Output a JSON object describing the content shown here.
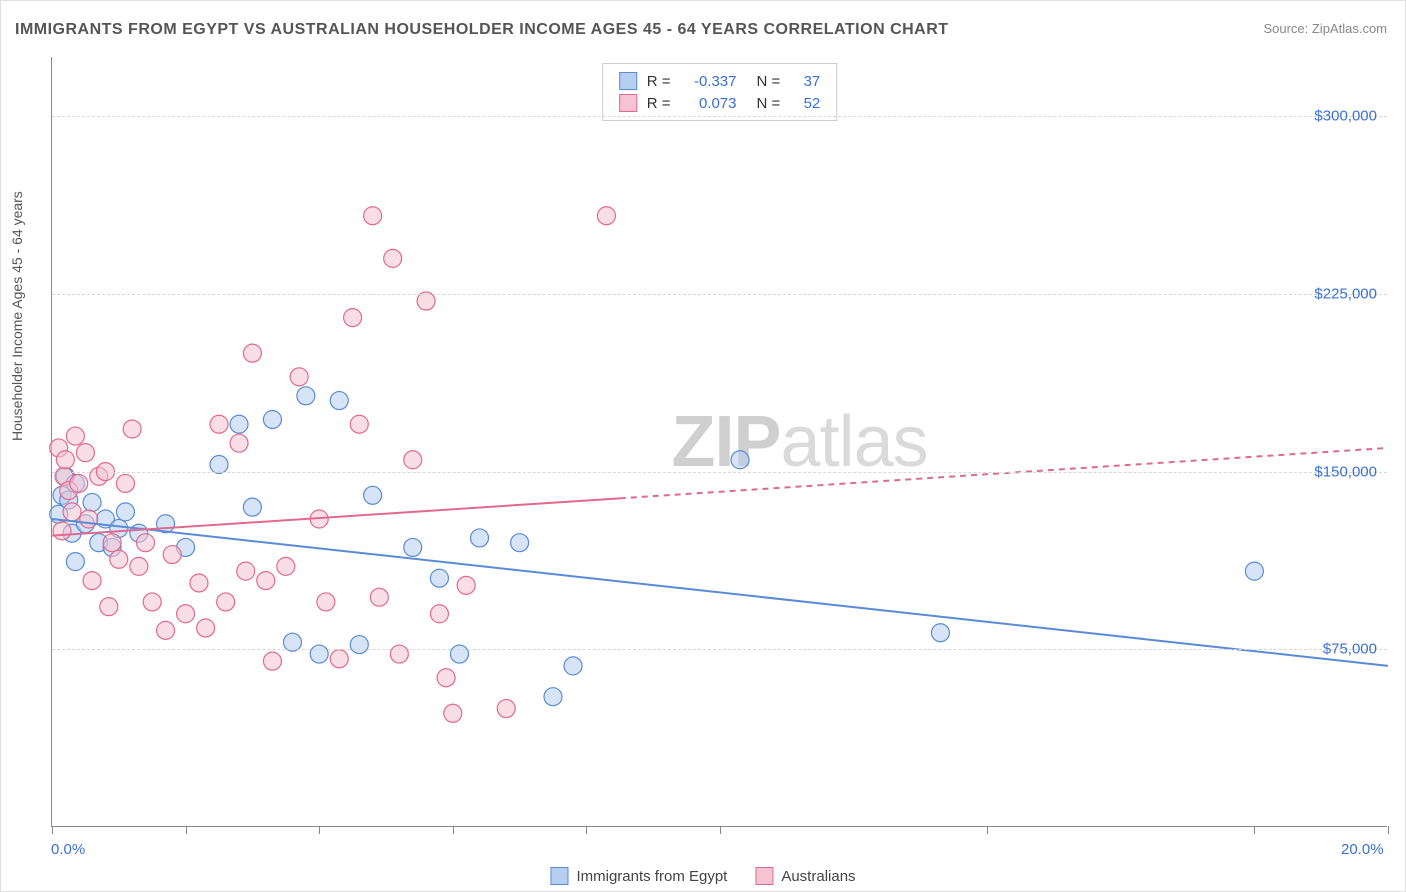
{
  "title": "IMMIGRANTS FROM EGYPT VS AUSTRALIAN HOUSEHOLDER INCOME AGES 45 - 64 YEARS CORRELATION CHART",
  "source": "Source: ZipAtlas.com",
  "watermark_a": "ZIP",
  "watermark_b": "atlas",
  "chart": {
    "type": "scatter",
    "xlim": [
      0,
      20
    ],
    "ylim": [
      0,
      325000
    ],
    "x_ticks": [
      0,
      2,
      4,
      6,
      8,
      10,
      14,
      18,
      20
    ],
    "x_tick_labels": {
      "0": "0.0%",
      "20": "20.0%"
    },
    "y_ticks": [
      75000,
      150000,
      225000,
      300000
    ],
    "y_tick_labels": [
      "$75,000",
      "$150,000",
      "$225,000",
      "$300,000"
    ],
    "ylabel": "Householder Income Ages 45 - 64 years",
    "background_color": "#ffffff",
    "grid_color": "#d8d8d8",
    "axis_color": "#888888",
    "marker_radius": 9,
    "marker_stroke_width": 1.2,
    "trend_line_width": 2
  },
  "series": [
    {
      "name": "Immigrants from Egypt",
      "fill": "#b6cef0",
      "stroke": "#5a8bd6",
      "r_value": "-0.337",
      "n_value": "37",
      "trend": {
        "y_at_xmin": 130000,
        "y_at_xmax": 68000,
        "solid_until_x": 20
      },
      "points": [
        {
          "x": 0.1,
          "y": 132000
        },
        {
          "x": 0.15,
          "y": 140000
        },
        {
          "x": 0.2,
          "y": 148000
        },
        {
          "x": 0.25,
          "y": 138000
        },
        {
          "x": 0.3,
          "y": 124000
        },
        {
          "x": 0.35,
          "y": 112000
        },
        {
          "x": 0.35,
          "y": 145000
        },
        {
          "x": 0.5,
          "y": 128000
        },
        {
          "x": 0.6,
          "y": 137000
        },
        {
          "x": 0.7,
          "y": 120000
        },
        {
          "x": 0.8,
          "y": 130000
        },
        {
          "x": 0.9,
          "y": 118000
        },
        {
          "x": 1.0,
          "y": 126000
        },
        {
          "x": 1.1,
          "y": 133000
        },
        {
          "x": 1.3,
          "y": 124000
        },
        {
          "x": 1.7,
          "y": 128000
        },
        {
          "x": 2.0,
          "y": 118000
        },
        {
          "x": 2.5,
          "y": 153000
        },
        {
          "x": 2.8,
          "y": 170000
        },
        {
          "x": 3.0,
          "y": 135000
        },
        {
          "x": 3.3,
          "y": 172000
        },
        {
          "x": 3.6,
          "y": 78000
        },
        {
          "x": 3.8,
          "y": 182000
        },
        {
          "x": 4.0,
          "y": 73000
        },
        {
          "x": 4.3,
          "y": 180000
        },
        {
          "x": 4.6,
          "y": 77000
        },
        {
          "x": 4.8,
          "y": 140000
        },
        {
          "x": 5.4,
          "y": 118000
        },
        {
          "x": 5.8,
          "y": 105000
        },
        {
          "x": 6.1,
          "y": 73000
        },
        {
          "x": 6.4,
          "y": 122000
        },
        {
          "x": 7.0,
          "y": 120000
        },
        {
          "x": 7.5,
          "y": 55000
        },
        {
          "x": 7.8,
          "y": 68000
        },
        {
          "x": 10.3,
          "y": 155000
        },
        {
          "x": 13.3,
          "y": 82000
        },
        {
          "x": 18.0,
          "y": 108000
        }
      ]
    },
    {
      "name": "Australians",
      "fill": "#f5c3d1",
      "stroke": "#e06a8e",
      "r_value": "0.073",
      "n_value": "52",
      "trend": {
        "y_at_xmin": 123000,
        "y_at_xmax": 160000,
        "solid_until_x": 8.5
      },
      "points": [
        {
          "x": 0.1,
          "y": 160000
        },
        {
          "x": 0.15,
          "y": 125000
        },
        {
          "x": 0.18,
          "y": 148000
        },
        {
          "x": 0.2,
          "y": 155000
        },
        {
          "x": 0.25,
          "y": 142000
        },
        {
          "x": 0.3,
          "y": 133000
        },
        {
          "x": 0.35,
          "y": 165000
        },
        {
          "x": 0.4,
          "y": 145000
        },
        {
          "x": 0.5,
          "y": 158000
        },
        {
          "x": 0.55,
          "y": 130000
        },
        {
          "x": 0.6,
          "y": 104000
        },
        {
          "x": 0.7,
          "y": 148000
        },
        {
          "x": 0.8,
          "y": 150000
        },
        {
          "x": 0.85,
          "y": 93000
        },
        {
          "x": 0.9,
          "y": 120000
        },
        {
          "x": 1.0,
          "y": 113000
        },
        {
          "x": 1.1,
          "y": 145000
        },
        {
          "x": 1.2,
          "y": 168000
        },
        {
          "x": 1.3,
          "y": 110000
        },
        {
          "x": 1.4,
          "y": 120000
        },
        {
          "x": 1.5,
          "y": 95000
        },
        {
          "x": 1.7,
          "y": 83000
        },
        {
          "x": 1.8,
          "y": 115000
        },
        {
          "x": 2.0,
          "y": 90000
        },
        {
          "x": 2.2,
          "y": 103000
        },
        {
          "x": 2.3,
          "y": 84000
        },
        {
          "x": 2.5,
          "y": 170000
        },
        {
          "x": 2.6,
          "y": 95000
        },
        {
          "x": 2.8,
          "y": 162000
        },
        {
          "x": 2.9,
          "y": 108000
        },
        {
          "x": 3.0,
          "y": 200000
        },
        {
          "x": 3.2,
          "y": 104000
        },
        {
          "x": 3.3,
          "y": 70000
        },
        {
          "x": 3.5,
          "y": 110000
        },
        {
          "x": 3.7,
          "y": 190000
        },
        {
          "x": 4.0,
          "y": 130000
        },
        {
          "x": 4.1,
          "y": 95000
        },
        {
          "x": 4.3,
          "y": 71000
        },
        {
          "x": 4.5,
          "y": 215000
        },
        {
          "x": 4.6,
          "y": 170000
        },
        {
          "x": 4.8,
          "y": 258000
        },
        {
          "x": 4.9,
          "y": 97000
        },
        {
          "x": 5.1,
          "y": 240000
        },
        {
          "x": 5.2,
          "y": 73000
        },
        {
          "x": 5.4,
          "y": 155000
        },
        {
          "x": 5.6,
          "y": 222000
        },
        {
          "x": 5.8,
          "y": 90000
        },
        {
          "x": 5.9,
          "y": 63000
        },
        {
          "x": 6.0,
          "y": 48000
        },
        {
          "x": 6.2,
          "y": 102000
        },
        {
          "x": 6.8,
          "y": 50000
        },
        {
          "x": 8.3,
          "y": 258000
        }
      ]
    }
  ],
  "legend_bottom": [
    {
      "label": "Immigrants from Egypt",
      "fill": "#b6cef0",
      "stroke": "#5a8bd6"
    },
    {
      "label": "Australians",
      "fill": "#f5c3d1",
      "stroke": "#e06a8e"
    }
  ],
  "legend_top_labels": {
    "r": "R =",
    "n": "N ="
  }
}
